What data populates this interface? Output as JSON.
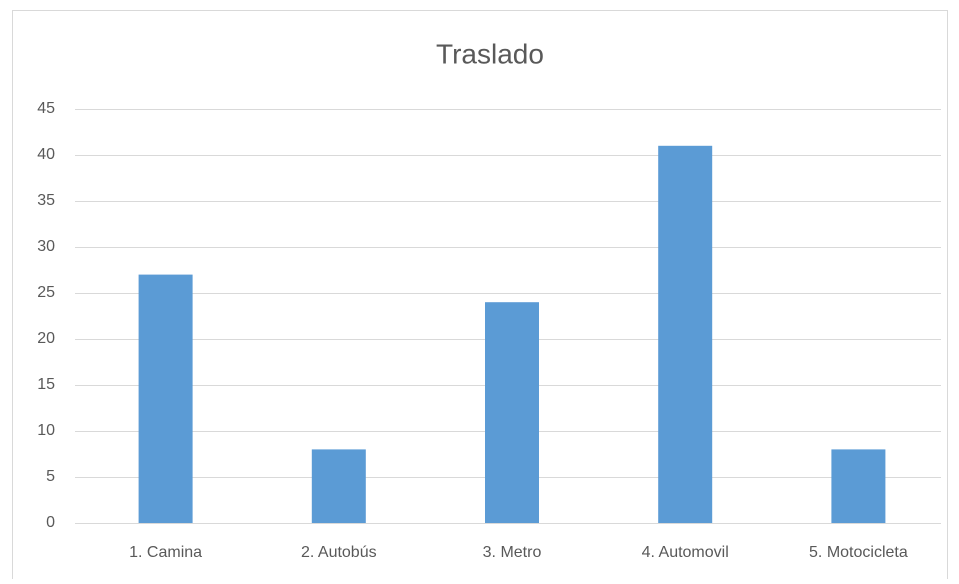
{
  "chart_data": {
    "type": "bar",
    "title": "Traslado",
    "categories": [
      "1. Camina",
      "2. Autobús",
      "3. Metro",
      "4. Automovil",
      "5. Motocicleta"
    ],
    "values": [
      27,
      8,
      24,
      41,
      8
    ],
    "color": "#5b9bd5",
    "ylim": [
      0,
      45
    ],
    "yticks": [
      0,
      5,
      10,
      15,
      20,
      25,
      30,
      35,
      40,
      45
    ],
    "grid": true
  }
}
